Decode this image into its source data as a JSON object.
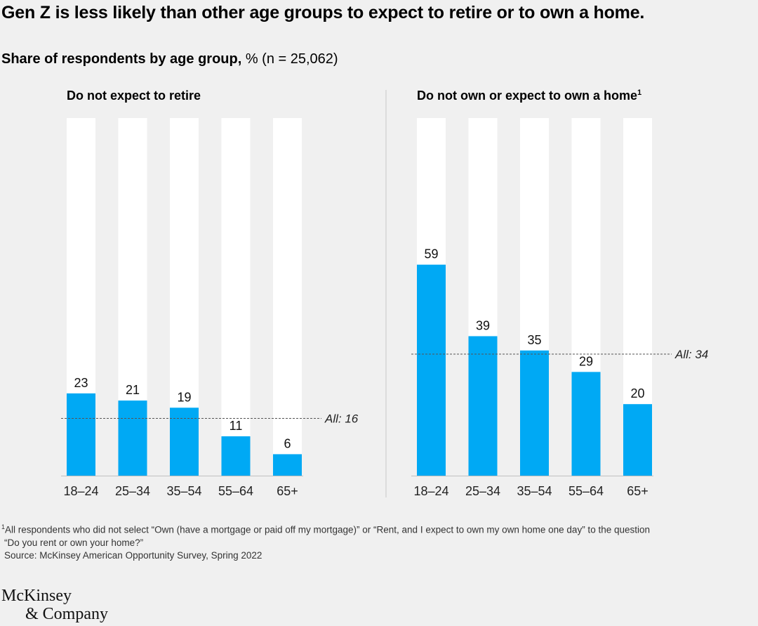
{
  "header": {
    "title": "Gen Z is less likely than other age groups to expect to retire or to own a home.",
    "subtitle_bold": "Share of respondents by age group,",
    "subtitle_rest": " % (n = 25,062)"
  },
  "chart_data": [
    {
      "type": "bar",
      "title": "Do not expect to retire",
      "categories": [
        "18–24",
        "25–34",
        "35–54",
        "55–64",
        "65+"
      ],
      "values": [
        23,
        21,
        19,
        11,
        6
      ],
      "ylim": [
        0,
        100
      ],
      "reference_line": {
        "label": "All: 16",
        "value": 16
      },
      "colors": {
        "bar": "#00a9f4",
        "track": "#ffffff"
      }
    },
    {
      "type": "bar",
      "title": "Do not own or expect to own a home",
      "title_sup": "1",
      "categories": [
        "18–24",
        "25–34",
        "35–54",
        "55–64",
        "65+"
      ],
      "values": [
        59,
        39,
        35,
        29,
        20
      ],
      "ylim": [
        0,
        100
      ],
      "reference_line": {
        "label": "All: 34",
        "value": 34
      },
      "colors": {
        "bar": "#00a9f4",
        "track": "#ffffff"
      }
    }
  ],
  "footnote": {
    "marker": "1",
    "line1": "All respondents who did not select “Own (have a mortgage or paid off my mortgage)” or “Rent, and I expect to own my own home one day” to the question",
    "line2": "“Do you rent or own your home?”",
    "source": "Source: McKinsey American Opportunity Survey, Spring 2022"
  },
  "logo": {
    "line1": "McKinsey",
    "line2": "& Company"
  }
}
